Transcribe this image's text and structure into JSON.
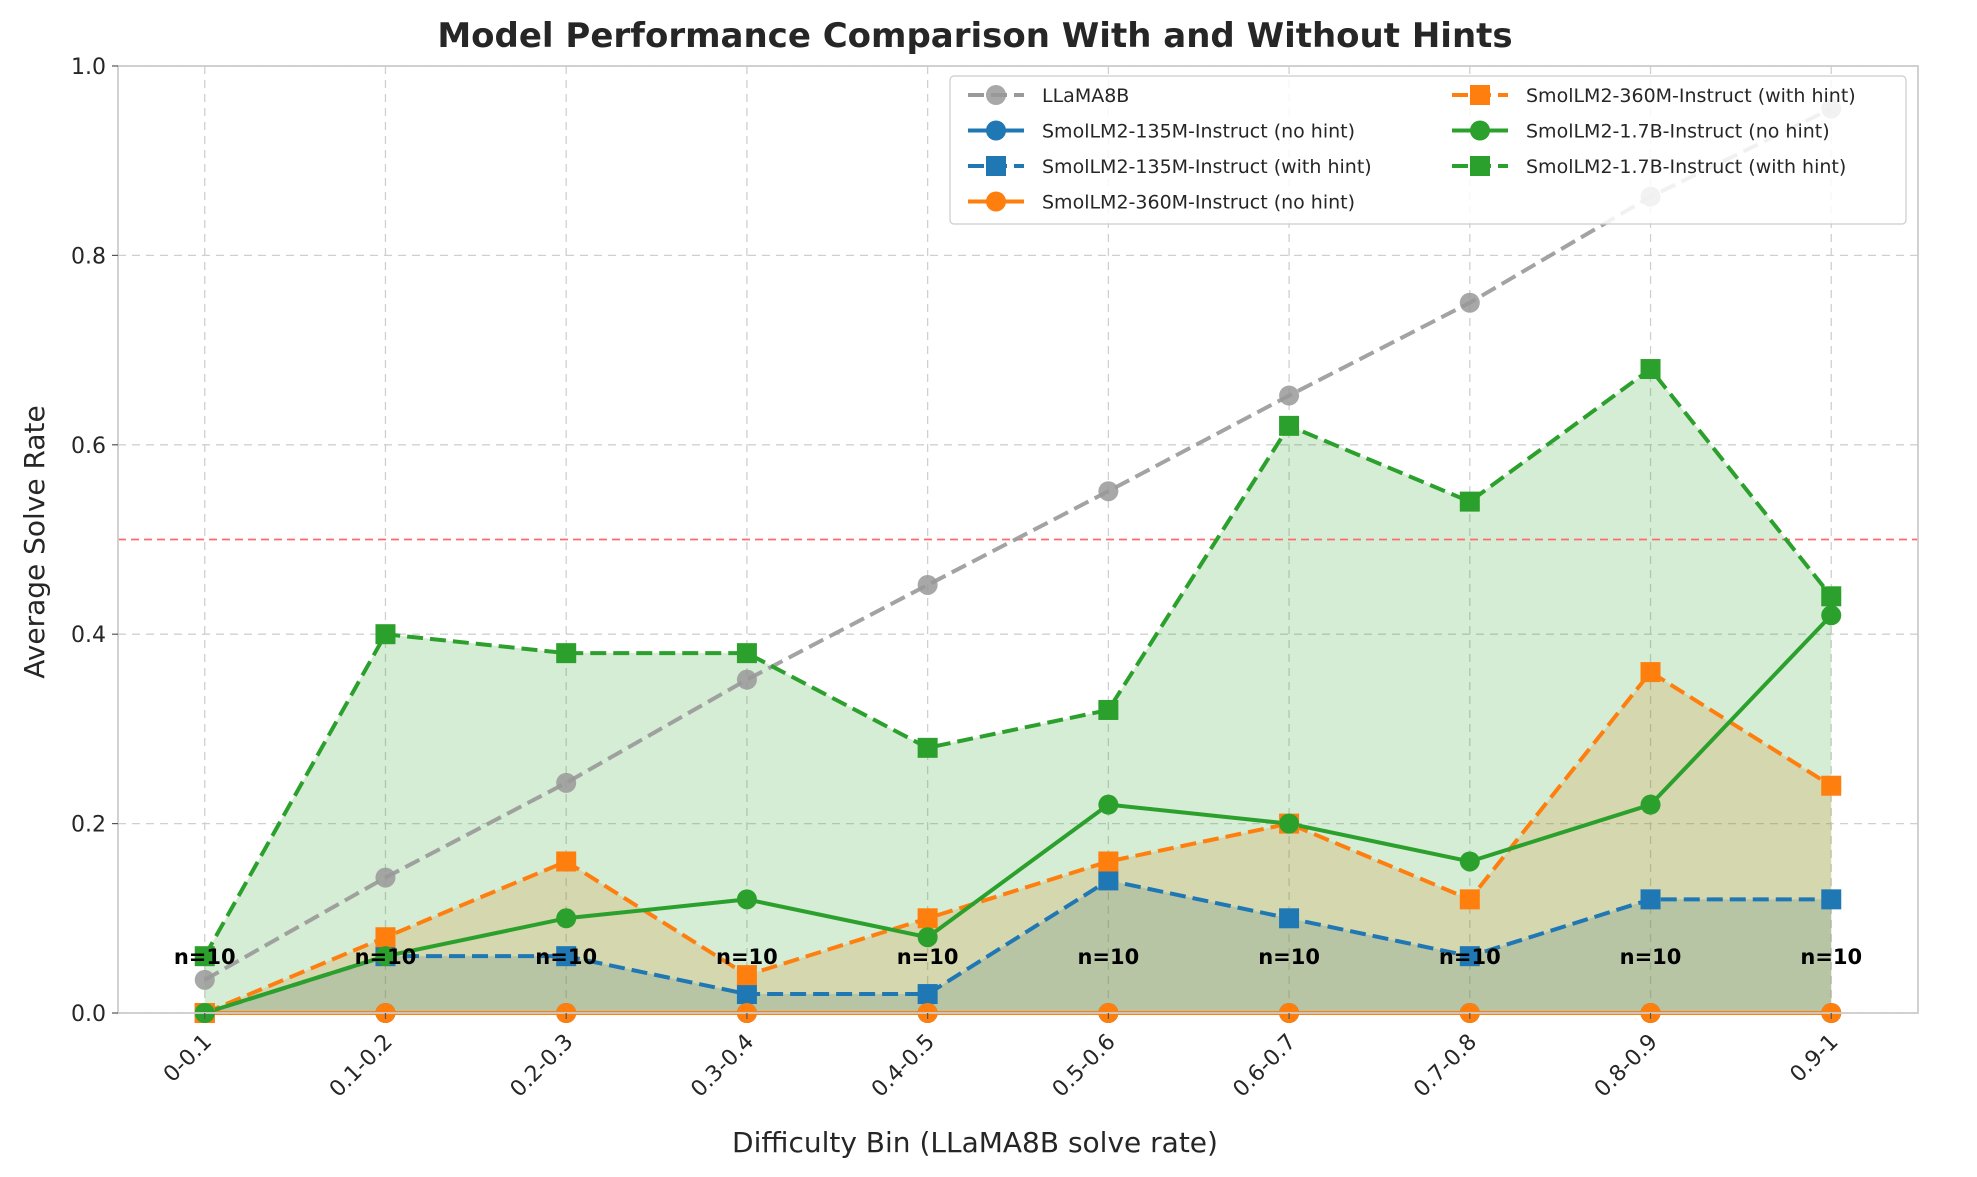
{
  "chart_data": {
    "type": "line",
    "title": "Model Performance Comparison With and Without Hints",
    "xlabel": "Difficulty Bin (LLaMA8B solve rate)",
    "ylabel": "Average Solve Rate",
    "ylim": [
      0,
      1.0
    ],
    "yticks": [
      "0.0",
      "0.2",
      "0.4",
      "0.6",
      "0.8",
      "1.0"
    ],
    "grid": true,
    "legend_position": "top-right",
    "categories": [
      "0-0.1",
      "0.1-0.2",
      "0.2-0.3",
      "0.3-0.4",
      "0.4-0.5",
      "0.5-0.6",
      "0.6-0.7",
      "0.7-0.8",
      "0.8-0.9",
      "0.9-1"
    ],
    "reference_line": {
      "y": 0.5,
      "color": "#ff6b6b",
      "style": "dashed"
    },
    "annotations": [
      "n=10",
      "n=10",
      "n=10",
      "n=10",
      "n=10",
      "n=10",
      "n=10",
      "n=10",
      "n=10",
      "n=10"
    ],
    "annotation_y": 0.06,
    "series": [
      {
        "name": "LLaMA8B",
        "color": "#999999",
        "dash": true,
        "marker": "circle",
        "fill": false,
        "values": [
          0.035,
          0.143,
          0.243,
          0.352,
          0.452,
          0.551,
          0.652,
          0.75,
          0.862,
          0.955
        ]
      },
      {
        "name": "SmolLM2-135M-Instruct (no hint)",
        "color": "#1f77b4",
        "dash": false,
        "marker": "circle",
        "fill": false,
        "values": [
          0,
          0,
          0,
          0,
          0,
          0,
          0,
          0,
          0,
          0
        ]
      },
      {
        "name": "SmolLM2-135M-Instruct (with hint)",
        "color": "#1f77b4",
        "dash": true,
        "marker": "square",
        "fill": true,
        "values": [
          0,
          0.06,
          0.06,
          0.02,
          0.02,
          0.14,
          0.1,
          0.06,
          0.12,
          0.12
        ]
      },
      {
        "name": "SmolLM2-360M-Instruct (no hint)",
        "color": "#ff7f0e",
        "dash": false,
        "marker": "circle",
        "fill": false,
        "values": [
          0,
          0,
          0,
          0,
          0,
          0,
          0,
          0,
          0,
          0
        ]
      },
      {
        "name": "SmolLM2-360M-Instruct (with hint)",
        "color": "#ff7f0e",
        "dash": true,
        "marker": "square",
        "fill": true,
        "values": [
          0,
          0.08,
          0.16,
          0.04,
          0.1,
          0.16,
          0.2,
          0.12,
          0.36,
          0.24
        ]
      },
      {
        "name": "SmolLM2-1.7B-Instruct (no hint)",
        "color": "#2ca02c",
        "dash": false,
        "marker": "circle",
        "fill": false,
        "values": [
          0,
          0.06,
          0.1,
          0.12,
          0.08,
          0.22,
          0.2,
          0.16,
          0.22,
          0.42
        ]
      },
      {
        "name": "SmolLM2-1.7B-Instruct (with hint)",
        "color": "#2ca02c",
        "dash": true,
        "marker": "square",
        "fill": true,
        "values": [
          0.06,
          0.4,
          0.38,
          0.38,
          0.28,
          0.32,
          0.62,
          0.54,
          0.68,
          0.44
        ]
      }
    ],
    "legend_order": [
      0,
      1,
      2,
      3,
      4,
      5,
      6
    ]
  }
}
